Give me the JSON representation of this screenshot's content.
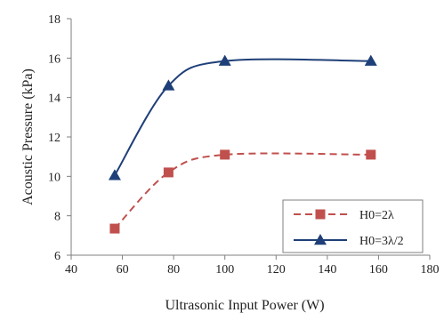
{
  "chart_data": {
    "type": "line",
    "title": "",
    "xlabel": "Ultrasonic Input Power (W)",
    "ylabel": "Acoustic Pressure  (kPa)",
    "xlim": [
      40,
      180
    ],
    "ylim": [
      6,
      18
    ],
    "xticks": [
      40,
      60,
      80,
      100,
      120,
      140,
      160,
      180
    ],
    "yticks": [
      6,
      8,
      10,
      12,
      14,
      16,
      18
    ],
    "grid": false,
    "legend_position": "bottom-right",
    "series": [
      {
        "name": "H0=2λ",
        "x": [
          57,
          78,
          100,
          157
        ],
        "y": [
          7.35,
          10.2,
          11.1,
          11.1
        ],
        "color": "#c0504d",
        "line_style": "dashed",
        "marker": "square"
      },
      {
        "name": "H0=3λ/2",
        "x": [
          57,
          78,
          100,
          157
        ],
        "y": [
          10.05,
          14.6,
          15.85,
          15.85
        ],
        "color": "#1f3f78",
        "line_style": "solid",
        "marker": "triangle"
      }
    ]
  }
}
